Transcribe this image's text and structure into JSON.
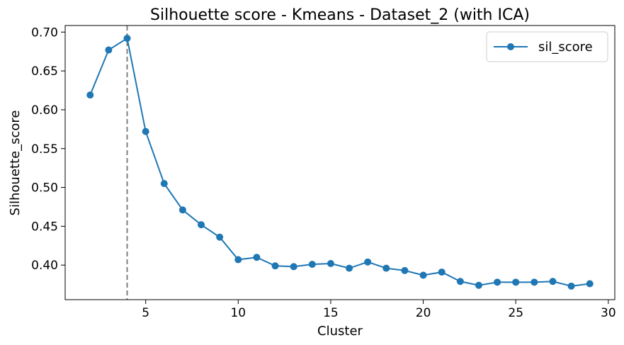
{
  "chart_data": {
    "type": "line",
    "title": "Silhouette score - Kmeans - Dataset_2 (with ICA)",
    "xlabel": "Cluster",
    "ylabel": "Silhouette_score",
    "xlim": [
      0.65,
      30.35
    ],
    "ylim": [
      0.3555,
      0.7085
    ],
    "xticks": [
      5,
      10,
      15,
      20,
      25,
      30
    ],
    "yticks": [
      0.4,
      0.45,
      0.5,
      0.55,
      0.6,
      0.65,
      0.7
    ],
    "grid": false,
    "legend": {
      "placement": "top-right",
      "entries": [
        "sil_score"
      ]
    },
    "reference_line": {
      "x": 4,
      "style": "dashed",
      "color": "#808080"
    },
    "series": [
      {
        "name": "sil_score",
        "color": "#1f77b4",
        "marker": "circle",
        "x": [
          2,
          3,
          4,
          5,
          6,
          7,
          8,
          9,
          10,
          11,
          12,
          13,
          14,
          15,
          16,
          17,
          18,
          19,
          20,
          21,
          22,
          23,
          24,
          25,
          26,
          27,
          28,
          29
        ],
        "y": [
          0.619,
          0.677,
          0.692,
          0.572,
          0.505,
          0.471,
          0.452,
          0.436,
          0.407,
          0.41,
          0.399,
          0.398,
          0.401,
          0.402,
          0.396,
          0.404,
          0.396,
          0.393,
          0.387,
          0.391,
          0.379,
          0.374,
          0.378,
          0.378,
          0.378,
          0.379,
          0.373,
          0.376
        ]
      }
    ]
  }
}
